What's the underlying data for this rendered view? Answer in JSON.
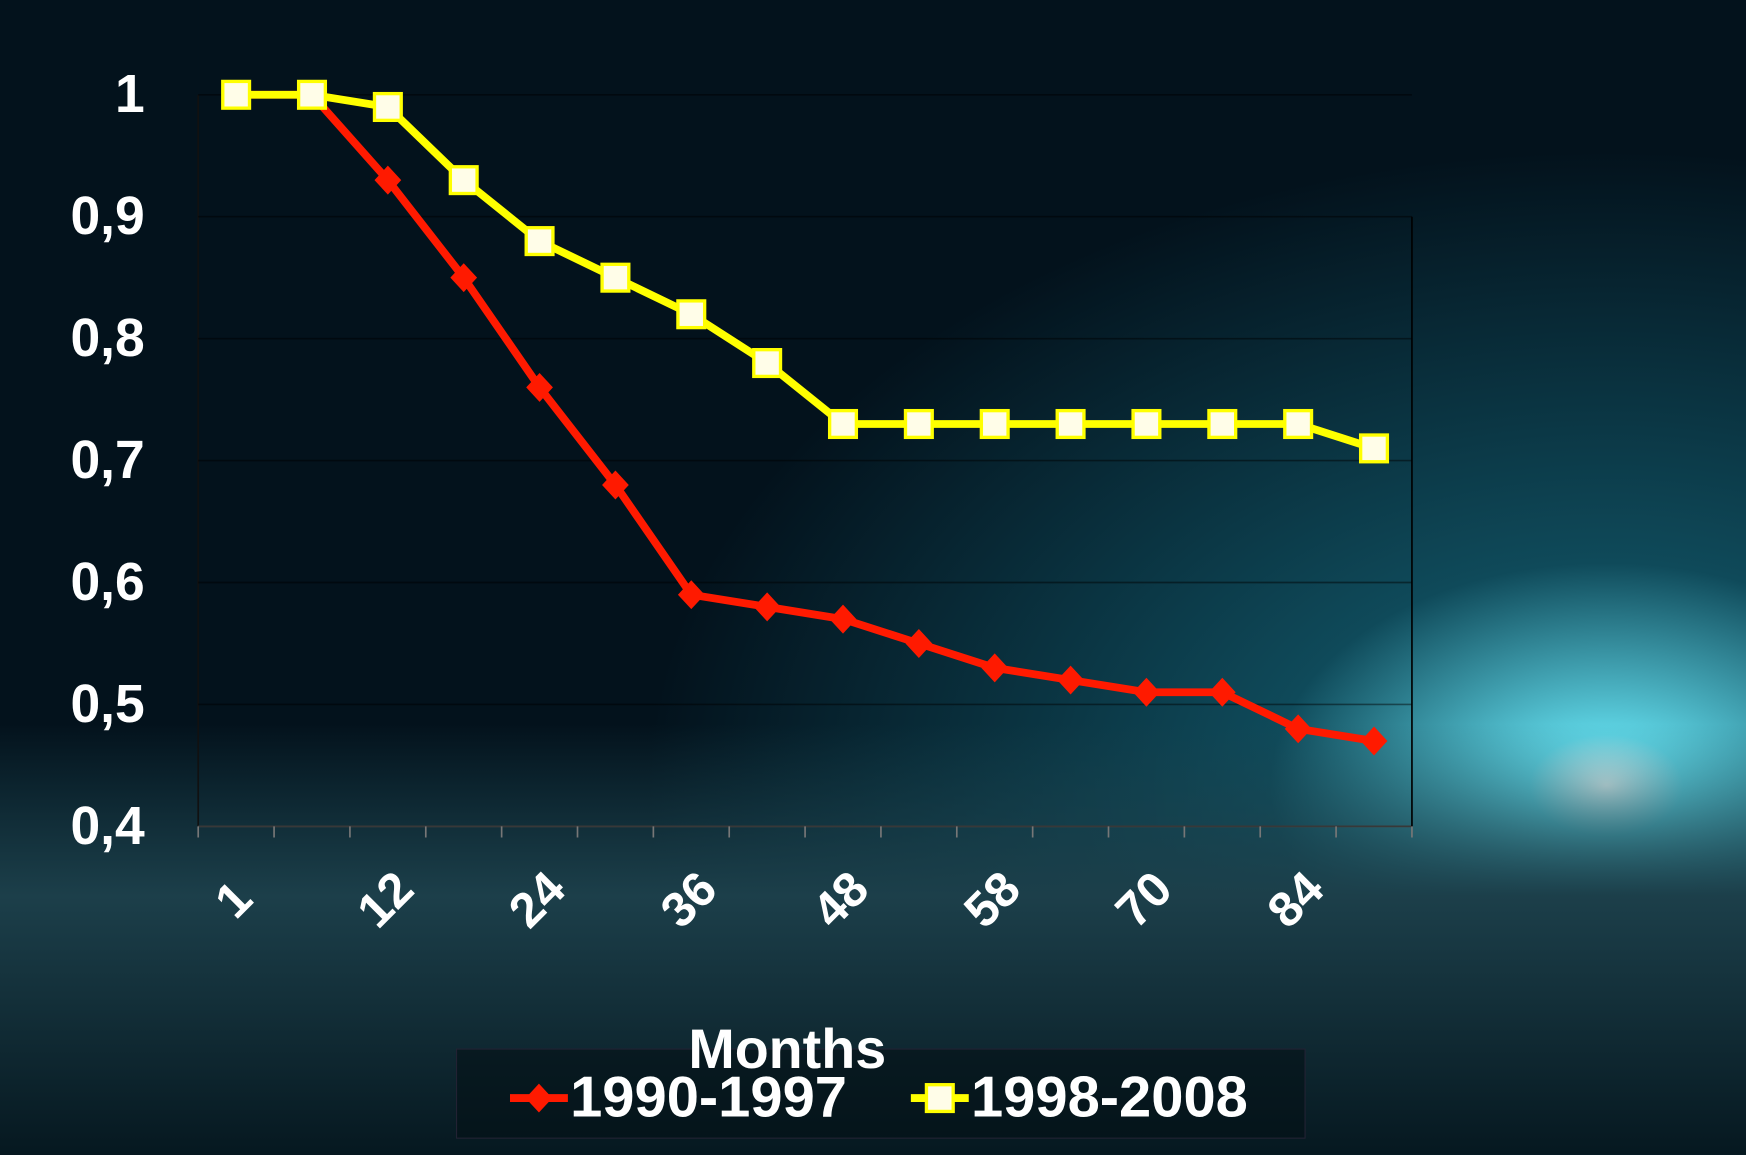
{
  "chart_data": {
    "type": "line",
    "x_label": "Months",
    "categories": [
      "1",
      null,
      "12",
      null,
      "24",
      null,
      "36",
      null,
      "48",
      null,
      "58",
      null,
      "70",
      null,
      "84",
      null
    ],
    "series": [
      {
        "name": "1990-1997",
        "color": "#ff1a00",
        "marker": "diamond",
        "values": [
          1,
          1,
          0.93,
          0.85,
          0.76,
          0.68,
          0.59,
          0.58,
          0.57,
          0.55,
          0.53,
          0.52,
          0.51,
          0.51,
          0.48,
          0.47
        ]
      },
      {
        "name": "1998-2008",
        "color": "#ffff00",
        "marker": "square",
        "values": [
          1,
          1,
          0.99,
          0.93,
          0.88,
          0.85,
          0.82,
          0.78,
          0.73,
          0.73,
          0.73,
          0.73,
          0.73,
          0.73,
          0.73,
          0.71
        ]
      }
    ],
    "ylim": [
      0.4,
      1
    ],
    "yticks": [
      {
        "value": 0.4,
        "label": "0,4"
      },
      {
        "value": 0.5,
        "label": "0,5"
      },
      {
        "value": 0.6,
        "label": "0,6"
      },
      {
        "value": 0.7,
        "label": "0,7"
      },
      {
        "value": 0.8,
        "label": "0,8"
      },
      {
        "value": 0.9,
        "label": "0,9"
      },
      1
    ],
    "grid": true,
    "legend": "bottom"
  }
}
